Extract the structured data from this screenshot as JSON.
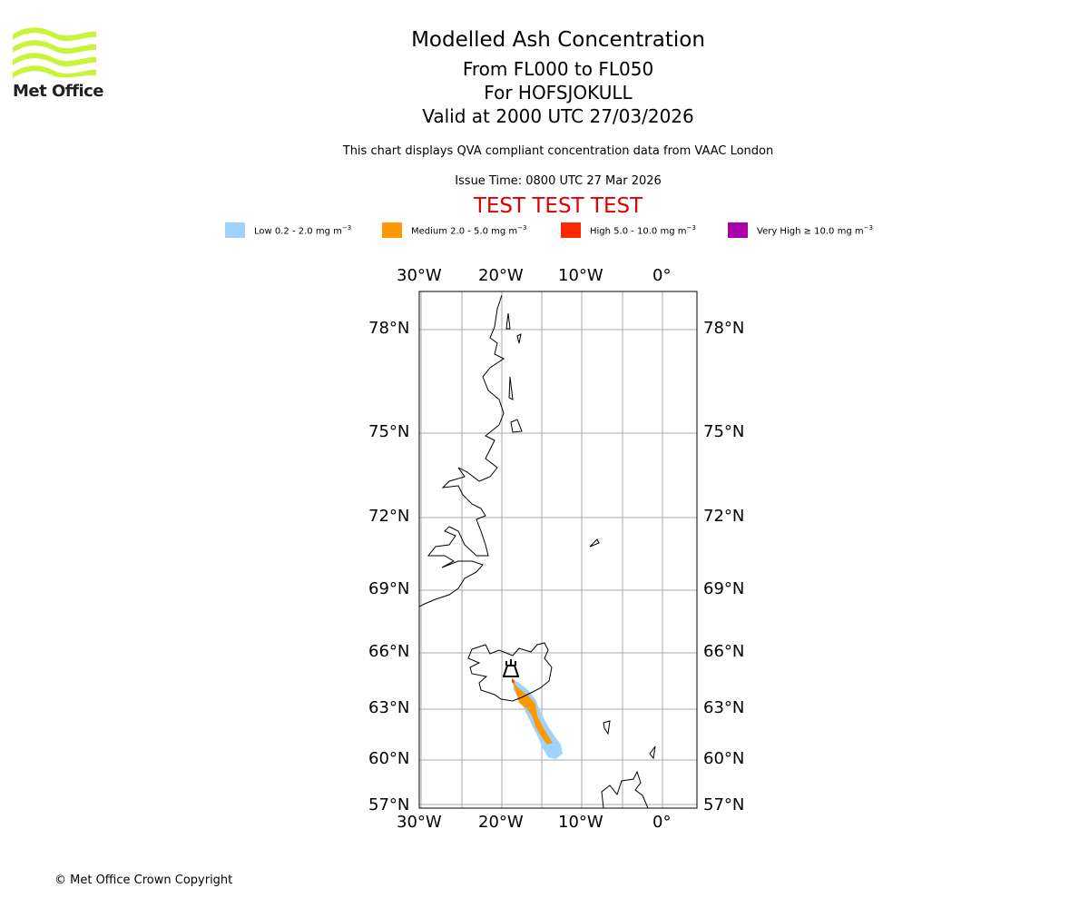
{
  "logo": {
    "text": "Met Office",
    "color": "#c8f53a"
  },
  "header": {
    "title": "Modelled Ash Concentration",
    "levels": "From FL000 to FL050",
    "volcano": "For HOFSJOKULL",
    "valid": "Valid at 2000 UTC 27/03/2026",
    "description": "This chart displays QVA compliant concentration data from VAAC London",
    "issue_time": "Issue Time: 0800 UTC 27 Mar 2026",
    "test_banner": "TEST TEST TEST"
  },
  "legend": [
    {
      "label": "Low 0.2 - 2.0 mg m",
      "unit_exp": "−3",
      "color": "#a0d2ff"
    },
    {
      "label": "Medium 2.0 - 5.0 mg m",
      "unit_exp": "−3",
      "color": "#ff9900"
    },
    {
      "label": "High 5.0 - 10.0 mg m",
      "unit_exp": "−3",
      "color": "#ff2800"
    },
    {
      "label": "Very High  ≥  10.0 mg m",
      "unit_exp": "−3",
      "color": "#aa00aa"
    }
  ],
  "map": {
    "lon_labels": [
      "30°W",
      "20°W",
      "10°W",
      "0°"
    ],
    "lat_labels": [
      "78°N",
      "75°N",
      "72°N",
      "69°N",
      "66°N",
      "63°N",
      "60°N",
      "57°N"
    ]
  },
  "footer": {
    "copyright": "© Met Office Crown Copyright"
  }
}
